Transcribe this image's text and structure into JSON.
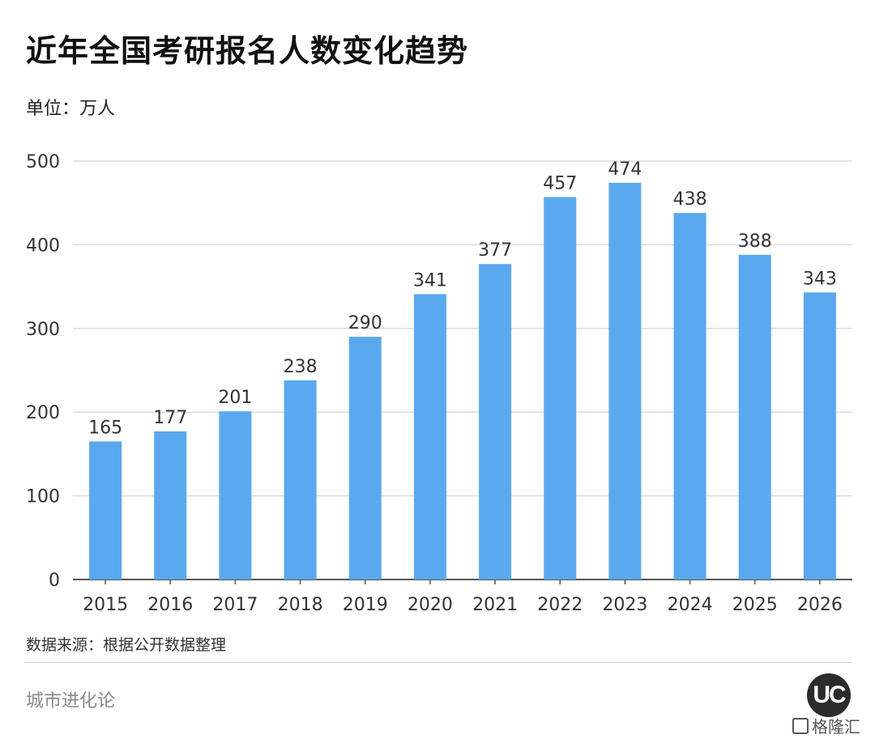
{
  "header": {
    "title": "近年全国考研报名人数变化趋势",
    "unit": "单位：万人"
  },
  "footer": {
    "source": "数据来源：根据公开数据整理",
    "brand": "城市进化论",
    "logo_text": "UC",
    "partner_text": "格隆汇"
  },
  "colors": {
    "bar": "#5aa9ef",
    "grid": "#dcdcdc",
    "axis": "#555555"
  },
  "chart_data": {
    "type": "bar",
    "title": "近年全国考研报名人数变化趋势",
    "ylabel": "单位：万人",
    "xlabel": "",
    "categories": [
      "2015",
      "2016",
      "2017",
      "2018",
      "2019",
      "2020",
      "2021",
      "2022",
      "2023",
      "2024",
      "2025",
      "2026"
    ],
    "values": [
      165,
      177,
      201,
      238,
      290,
      341,
      377,
      457,
      474,
      438,
      388,
      343
    ],
    "ylim": [
      0,
      500
    ],
    "yticks": [
      0,
      100,
      200,
      300,
      400,
      500
    ],
    "grid": true,
    "legend": "none"
  }
}
